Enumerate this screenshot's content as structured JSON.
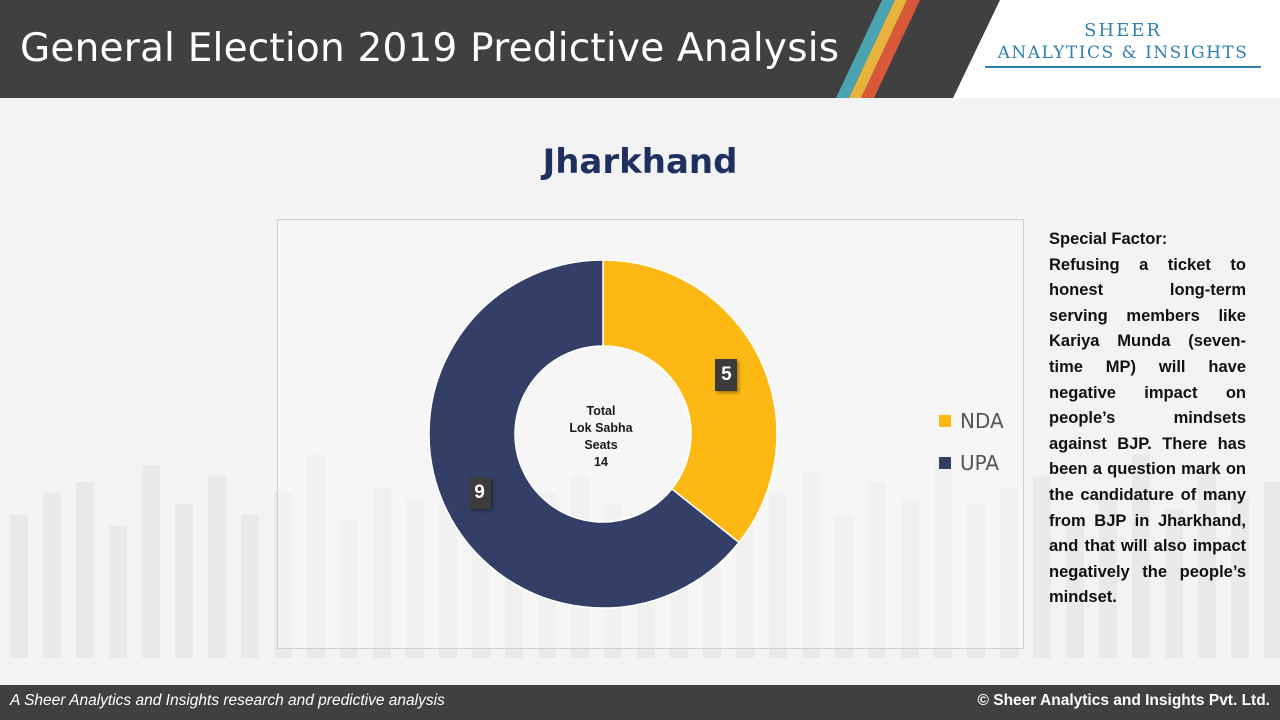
{
  "header": {
    "title": "General Election 2019 Predictive Analysis",
    "logo_line1": "SHEER",
    "logo_line2": "ANALYTICS & INSIGHTS",
    "stripe_colors": [
      "#4aa3b0",
      "#e7b33d",
      "#d9583a"
    ]
  },
  "state_title": "Jharkhand",
  "chart_data": {
    "type": "pie",
    "variant": "doughnut",
    "title": "",
    "labels": [
      "NDA",
      "UPA"
    ],
    "values": [
      5,
      9
    ],
    "colors": [
      "#fdb813",
      "#333f66"
    ],
    "legend_position": "right",
    "center_label": [
      "Total",
      "Lok Sabha",
      "Seats",
      "14"
    ]
  },
  "special_factor": {
    "heading": "Special Factor:",
    "text": "Refusing a ticket to honest long-term serving members like Kariya Munda (seven-time MP) will have negative impact on people’s mindsets against BJP. There has been a question mark on the candidature of many from BJP in Jharkhand, and that will also impact negatively the people’s mindset."
  },
  "footer": {
    "left": "A Sheer Analytics and Insights research and predictive analysis",
    "right": "© Sheer Analytics and Insights Pvt. Ltd."
  }
}
